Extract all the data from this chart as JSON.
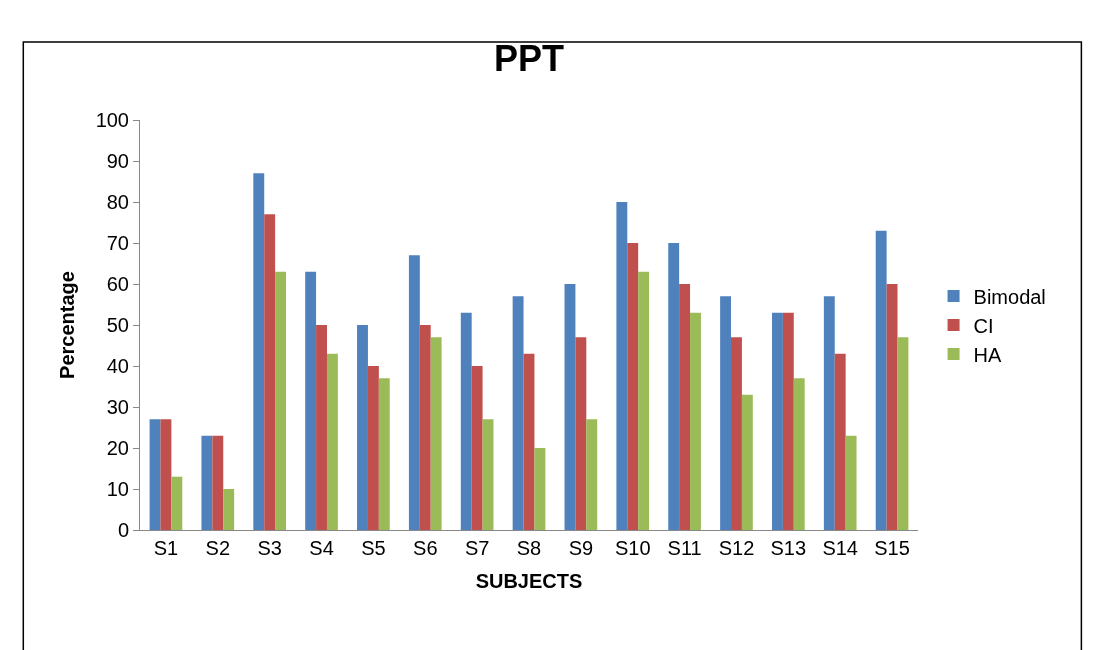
{
  "chart_data": {
    "type": "bar",
    "title": "PPT",
    "xlabel": "SUBJECTS",
    "ylabel": "Percentage",
    "categories": [
      "S1",
      "S2",
      "S3",
      "S4",
      "S5",
      "S6",
      "S7",
      "S8",
      "S9",
      "S10",
      "S11",
      "S12",
      "S13",
      "S14",
      "S15"
    ],
    "series": [
      {
        "name": "Bimodal",
        "color": "#4f81bd",
        "values": [
          27,
          23,
          87,
          63,
          50,
          67,
          53,
          57,
          60,
          80,
          70,
          57,
          53,
          57,
          73
        ]
      },
      {
        "name": "CI",
        "color": "#c0504d",
        "values": [
          27,
          23,
          77,
          50,
          40,
          50,
          40,
          43,
          47,
          70,
          60,
          47,
          53,
          43,
          60
        ]
      },
      {
        "name": "HA",
        "color": "#9bbb59",
        "values": [
          13,
          10,
          63,
          43,
          37,
          47,
          27,
          20,
          27,
          63,
          53,
          33,
          37,
          23,
          47
        ]
      }
    ],
    "ylim": [
      0,
      100
    ],
    "yticks": [
      0,
      10,
      20,
      30,
      40,
      50,
      60,
      70,
      80,
      90,
      100
    ],
    "legend": "right"
  }
}
